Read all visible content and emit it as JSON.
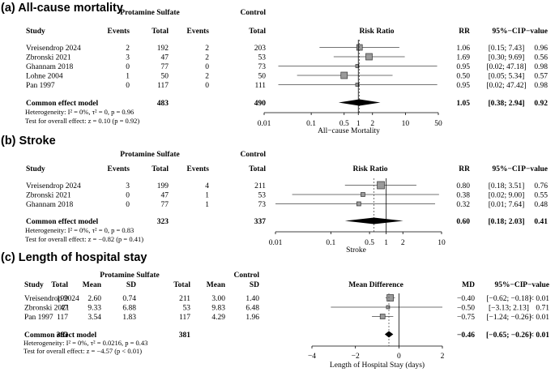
{
  "panels": [
    {
      "title": "(a) All-cause mortality",
      "group1": "Protamine Sulfate",
      "group2": "Control",
      "columns": [
        "Study",
        "Events",
        "Total",
        "Events",
        "Total",
        "Risk Ratio",
        "RR",
        "95%−CI",
        "P−value"
      ],
      "rows": [
        {
          "study": "Vreisendrop 2024",
          "c": [
            "2",
            "192",
            "2",
            "203"
          ],
          "est": "1.06",
          "ci": "[0.15;  7.43]",
          "p": "0.96"
        },
        {
          "study": "Zbronski 2021",
          "c": [
            "3",
            "47",
            "2",
            "53"
          ],
          "est": "1.69",
          "ci": "[0.30;  9.69]",
          "p": "0.56"
        },
        {
          "study": "Ghannam 2018",
          "c": [
            "0",
            "77",
            "0",
            "73"
          ],
          "est": "0.95",
          "ci": "[0.02; 47.18]",
          "p": "0.98"
        },
        {
          "study": "Lohne 2004",
          "c": [
            "1",
            "50",
            "2",
            "50"
          ],
          "est": "0.50",
          "ci": "[0.05;  5.34]",
          "p": "0.57"
        },
        {
          "study": "Pan 1997",
          "c": [
            "0",
            "117",
            "0",
            "111"
          ],
          "est": "0.95",
          "ci": "[0.02; 47.42]",
          "p": "0.98"
        }
      ],
      "summary": {
        "label": "Common effect model",
        "c": [
          "483",
          "490"
        ],
        "est": "1.05",
        "ci": "[0.38;  2.94]",
        "p": "0.92"
      },
      "notes": [
        "Heterogeneity: I² = 0%, τ² = 0, p = 0.96",
        "Test for overall effect: z = 0.10 (p = 0.92)"
      ],
      "axis_label": "All−cause Mortality",
      "ticks": [
        "0.01",
        "0.1",
        "0.5",
        "1",
        "2",
        "10",
        "50"
      ]
    },
    {
      "title": "(b) Stroke",
      "group1": "Protamine Sulfate",
      "group2": "Control",
      "columns": [
        "Study",
        "Events",
        "Total",
        "Events",
        "Total",
        "Risk Ratio",
        "RR",
        "95%−CI",
        "P−value"
      ],
      "rows": [
        {
          "study": "Vreisendrop 2024",
          "c": [
            "3",
            "199",
            "4",
            "211"
          ],
          "est": "0.80",
          "ci": "[0.18; 3.51]",
          "p": "0.76"
        },
        {
          "study": "Zbronski 2021",
          "c": [
            "0",
            "47",
            "1",
            "53"
          ],
          "est": "0.38",
          "ci": "[0.02; 9.00]",
          "p": "0.55"
        },
        {
          "study": "Ghannam 2018",
          "c": [
            "0",
            "77",
            "1",
            "73"
          ],
          "est": "0.32",
          "ci": "[0.01; 7.64]",
          "p": "0.48"
        }
      ],
      "summary": {
        "label": "Common effect model",
        "c": [
          "323",
          "337"
        ],
        "est": "0.60",
        "ci": "[0.18; 2.03]",
        "p": "0.41"
      },
      "notes": [
        "Heterogeneity: I² = 0%, τ² = 0, p = 0.83",
        "Test for overall effect: z = −0.82 (p = 0.41)"
      ],
      "axis_label": "Stroke",
      "ticks": [
        "0.01",
        "0.1",
        "0.5",
        "1",
        "2",
        "10"
      ]
    },
    {
      "title": "(c) Length of hospital stay",
      "group1": "Protamine Sulfate",
      "group2": "Control",
      "columns": [
        "Study",
        "Total",
        "Mean",
        "SD",
        "Total",
        "Mean",
        "SD",
        "Mean Difference",
        "MD",
        "95%−CI",
        "P−value"
      ],
      "rows": [
        {
          "study": "Vreisendrop 2024",
          "c": [
            "199",
            "2.60",
            "0.74",
            "211",
            "3.00",
            "1.40"
          ],
          "est": "−0.40",
          "ci": "[−0.62; −0.18]",
          "p": "< 0.01"
        },
        {
          "study": "Zbronski 2021",
          "c": [
            "47",
            "9.33",
            "6.88",
            "53",
            "9.83",
            "6.48"
          ],
          "est": "−0.50",
          "ci": "[−3.13;  2.13]",
          "p": "0.71"
        },
        {
          "study": "Pan 1997",
          "c": [
            "117",
            "3.54",
            "1.83",
            "117",
            "4.29",
            "1.96"
          ],
          "est": "−0.75",
          "ci": "[−1.24; −0.26]",
          "p": "< 0.01"
        }
      ],
      "summary": {
        "label": "Common effect model",
        "c": [
          "363",
          "381"
        ],
        "est": "−0.46",
        "ci": "[−0.65; −0.26]",
        "p": "< 0.01"
      },
      "notes": [
        "Heterogeneity: I² = 0%, τ² = 0.0216, p = 0.43",
        "Test for overall effect: z = −4.57 (p < 0.01)"
      ],
      "axis_label": "Length of Hospital Stay (days)",
      "ticks": [
        "−4",
        "−2",
        "0",
        "2"
      ]
    }
  ],
  "chart_data": [
    {
      "type": "forest",
      "title": "(a) All-cause mortality",
      "measure": "Risk Ratio",
      "scale": "log",
      "xlim": [
        0.01,
        50
      ],
      "null_value": 1,
      "studies": [
        {
          "name": "Vreisendrop 2024",
          "est": 1.06,
          "lo": 0.15,
          "hi": 7.43
        },
        {
          "name": "Zbronski 2021",
          "est": 1.69,
          "lo": 0.3,
          "hi": 9.69
        },
        {
          "name": "Ghannam 2018",
          "est": 0.95,
          "lo": 0.02,
          "hi": 47.18
        },
        {
          "name": "Lohne 2004",
          "est": 0.5,
          "lo": 0.05,
          "hi": 5.34
        },
        {
          "name": "Pan 1997",
          "est": 0.95,
          "lo": 0.02,
          "hi": 47.42
        }
      ],
      "pooled": {
        "est": 1.05,
        "lo": 0.38,
        "hi": 2.94
      }
    },
    {
      "type": "forest",
      "title": "(b) Stroke",
      "measure": "Risk Ratio",
      "scale": "log",
      "xlim": [
        0.01,
        10
      ],
      "null_value": 1,
      "studies": [
        {
          "name": "Vreisendrop 2024",
          "est": 0.8,
          "lo": 0.18,
          "hi": 3.51
        },
        {
          "name": "Zbronski 2021",
          "est": 0.38,
          "lo": 0.02,
          "hi": 9.0
        },
        {
          "name": "Ghannam 2018",
          "est": 0.32,
          "lo": 0.01,
          "hi": 7.64
        }
      ],
      "pooled": {
        "est": 0.6,
        "lo": 0.18,
        "hi": 2.03
      }
    },
    {
      "type": "forest",
      "title": "(c) Length of hospital stay",
      "measure": "Mean Difference",
      "scale": "linear",
      "xlim": [
        -4,
        2
      ],
      "null_value": 0,
      "studies": [
        {
          "name": "Vreisendrop 2024",
          "est": -0.4,
          "lo": -0.62,
          "hi": -0.18
        },
        {
          "name": "Zbronski 2021",
          "est": -0.5,
          "lo": -3.13,
          "hi": 2.13
        },
        {
          "name": "Pan 1997",
          "est": -0.75,
          "lo": -1.24,
          "hi": -0.26
        }
      ],
      "pooled": {
        "est": -0.46,
        "lo": -0.65,
        "hi": -0.26
      }
    }
  ]
}
